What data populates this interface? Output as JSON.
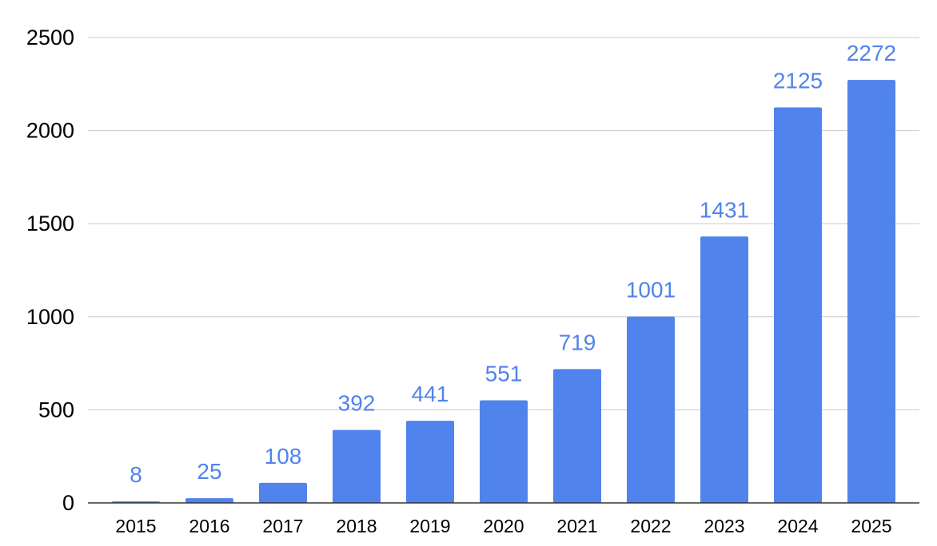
{
  "chart_data": {
    "type": "bar",
    "title": "",
    "xlabel": "",
    "ylabel": "",
    "categories": [
      "2015",
      "2016",
      "2017",
      "2018",
      "2019",
      "2020",
      "2021",
      "2022",
      "2023",
      "2024",
      "2025"
    ],
    "values": [
      8,
      25,
      108,
      392,
      441,
      551,
      719,
      1001,
      1431,
      2125,
      2272
    ],
    "ylim": [
      0,
      2500
    ],
    "yticks": [
      0,
      500,
      1000,
      1500,
      2000,
      2500
    ],
    "grid": true,
    "legend": "none",
    "data_labels": true,
    "bar_color": "#5183EC",
    "label_color": "#5183EC"
  }
}
